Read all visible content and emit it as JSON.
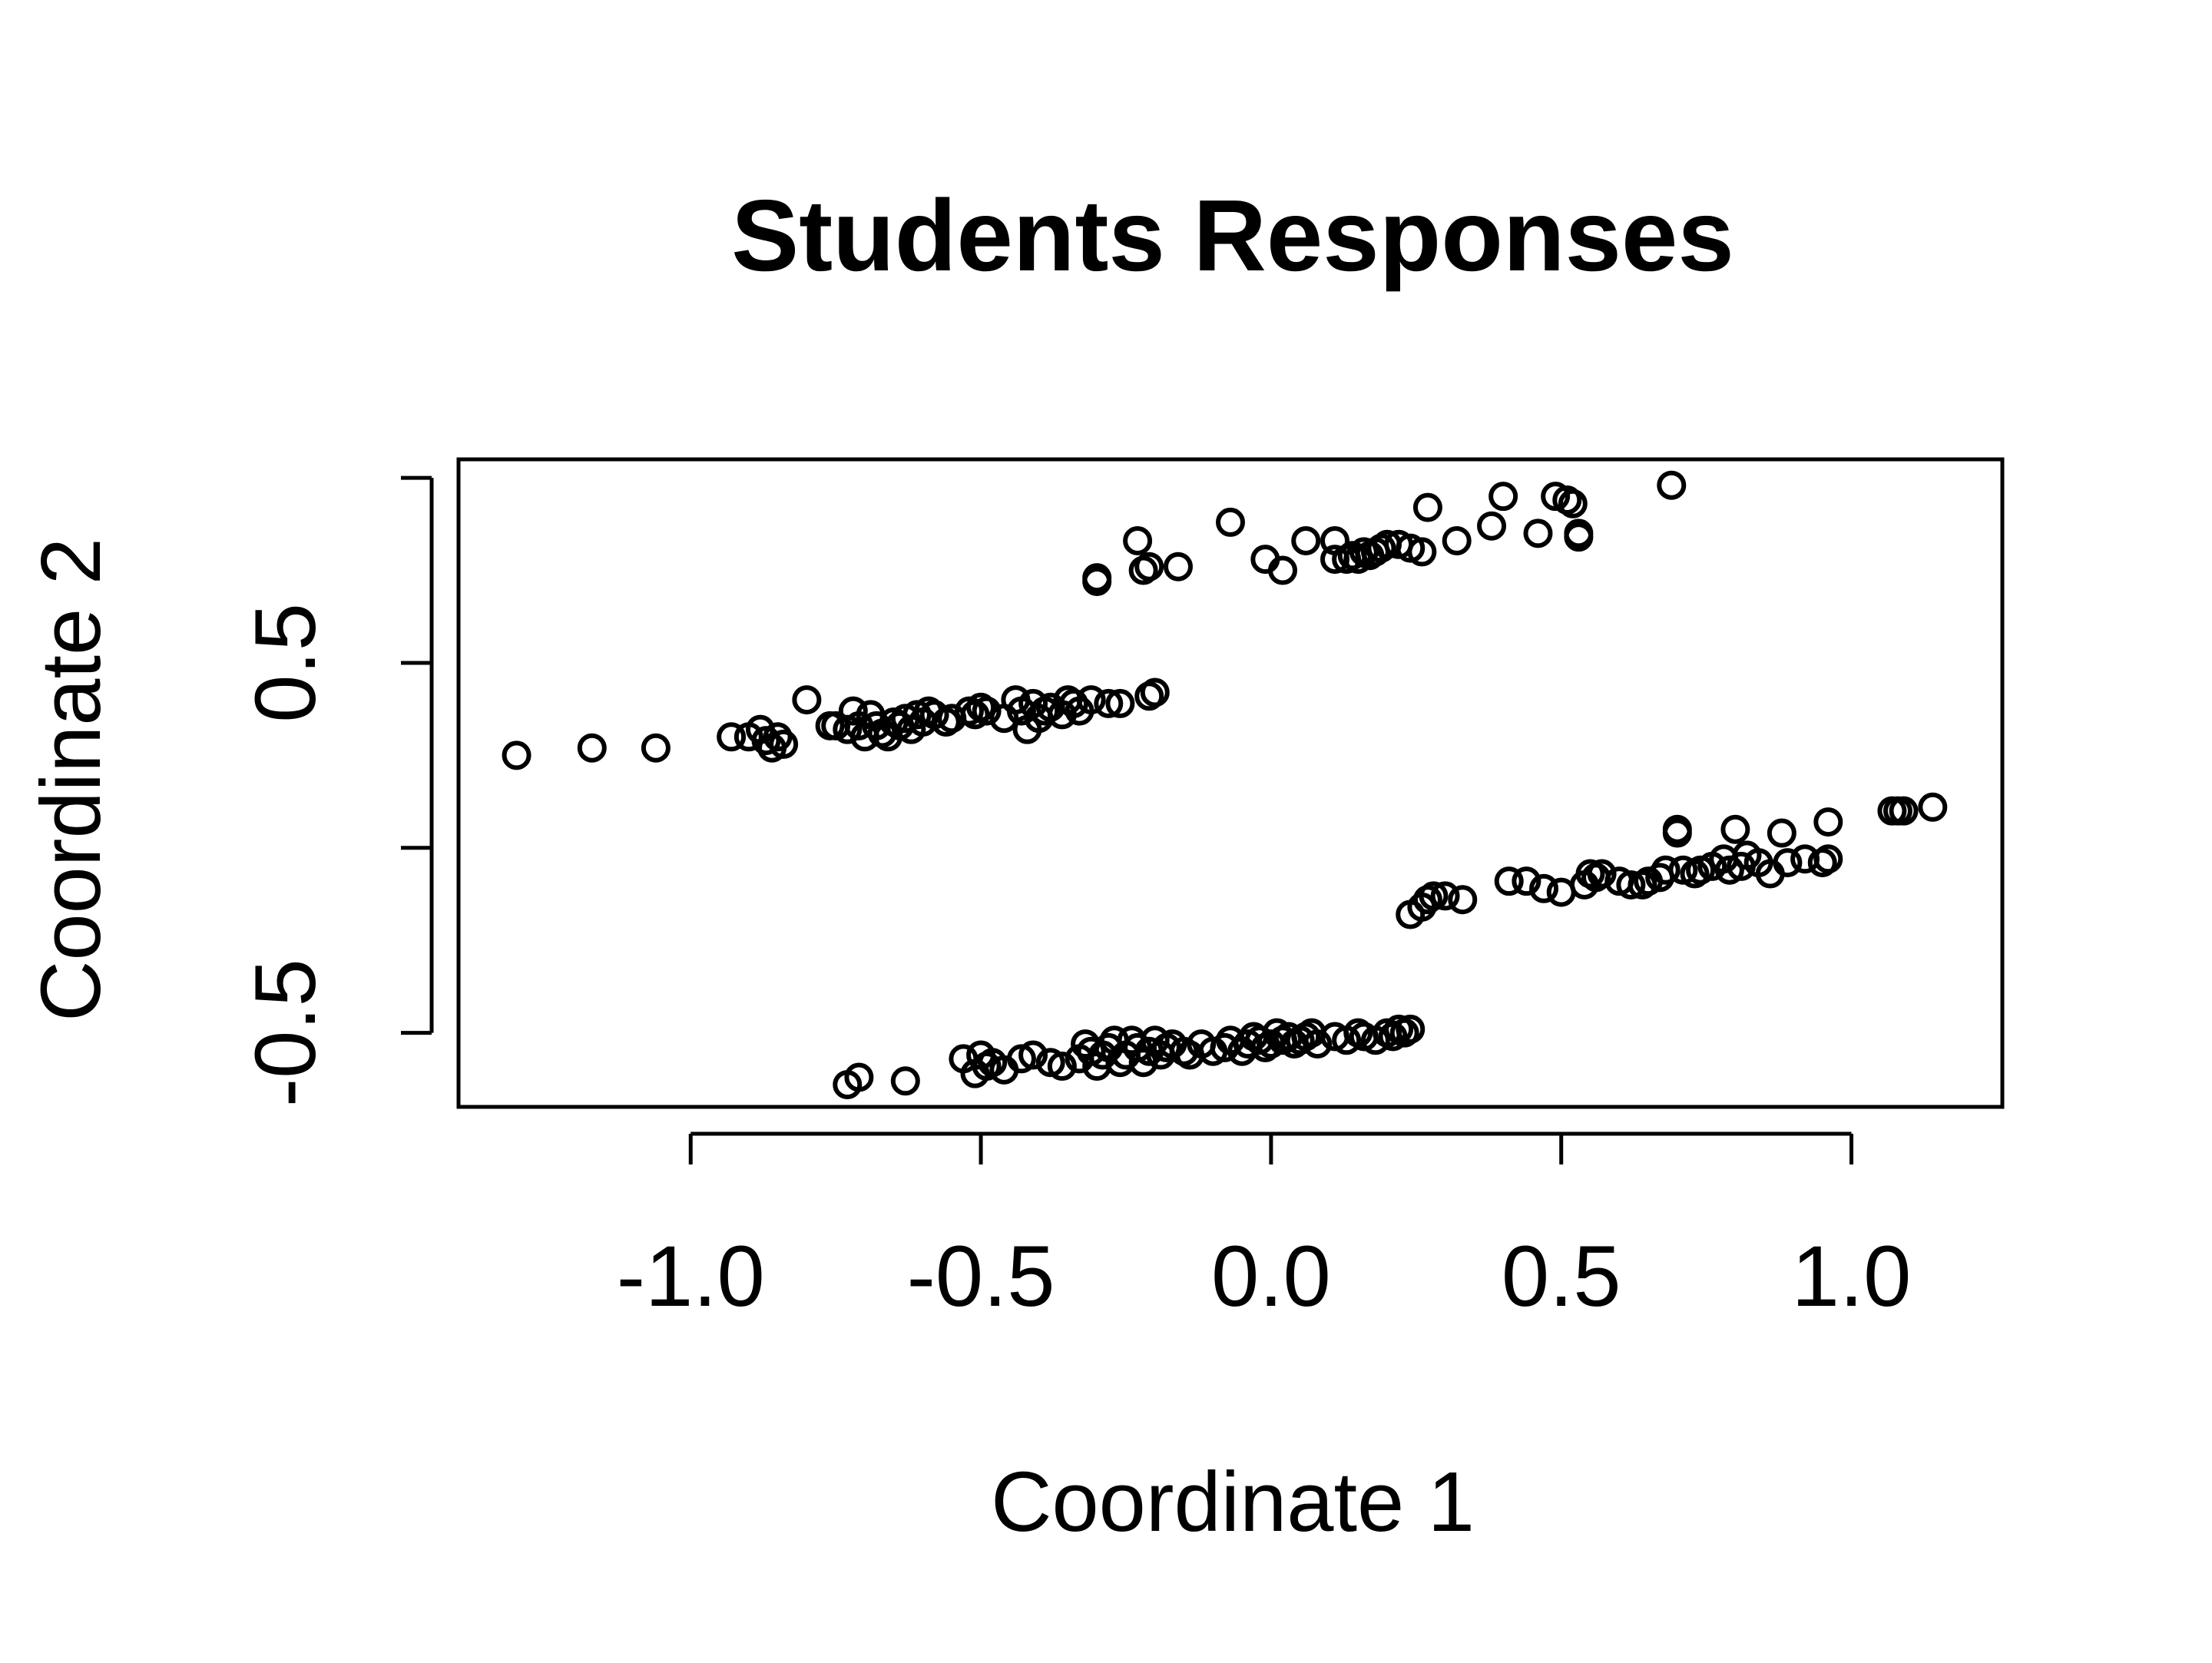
{
  "chart_data": {
    "type": "scatter",
    "title": "Students Responses",
    "xlabel": "Coordinate 1",
    "ylabel": "Coordinate 2",
    "xlim": [
      -1.4,
      1.26
    ],
    "ylim": [
      -0.7,
      1.05
    ],
    "xticks": [
      -1.0,
      -0.5,
      0.0,
      0.5,
      1.0
    ],
    "xtick_labels": [
      "-1.0",
      "-0.5",
      "0.0",
      "0.5",
      "1.0"
    ],
    "yticks": [
      -0.5,
      0.0,
      0.5,
      1.0
    ],
    "ytick_labels": [
      "-0.5",
      "",
      "0.5",
      ""
    ],
    "grid": false,
    "marker": "open-circle",
    "series": [
      {
        "x": [
          -1.3,
          -1.17,
          -1.06,
          -0.93,
          -0.9,
          -0.88,
          -0.87,
          -0.86,
          -0.85,
          -0.84,
          -0.8,
          -0.76,
          -0.75,
          -0.73,
          -0.72,
          -0.71,
          -0.7,
          -0.69,
          -0.68,
          -0.67,
          -0.66,
          -0.65,
          -0.64,
          -0.63,
          -0.62,
          -0.61,
          -0.6,
          -0.59,
          -0.58,
          -0.56,
          -0.55,
          -0.52,
          -0.51,
          -0.5,
          -0.49,
          -0.46,
          -0.44,
          -0.43,
          -0.42,
          -0.41,
          -0.4,
          -0.39,
          -0.38,
          -0.36,
          -0.35,
          -0.34,
          -0.33,
          -0.31,
          -0.28,
          -0.26,
          -0.21,
          -0.2
        ],
        "y": [
          0.25,
          0.27,
          0.27,
          0.3,
          0.3,
          0.32,
          0.29,
          0.27,
          0.3,
          0.28,
          0.4,
          0.33,
          0.33,
          0.32,
          0.37,
          0.33,
          0.3,
          0.36,
          0.33,
          0.31,
          0.3,
          0.34,
          0.33,
          0.35,
          0.32,
          0.36,
          0.34,
          0.37,
          0.36,
          0.34,
          0.35,
          0.37,
          0.36,
          0.38,
          0.37,
          0.35,
          0.4,
          0.37,
          0.32,
          0.39,
          0.35,
          0.37,
          0.38,
          0.36,
          0.4,
          0.39,
          0.37,
          0.4,
          0.39,
          0.39,
          0.41,
          0.42
        ]
      },
      {
        "x": [
          -0.3,
          -0.3,
          -0.23,
          -0.22,
          -0.21,
          -0.16,
          -0.07,
          -0.01,
          0.02,
          0.06,
          0.11,
          0.11,
          0.13,
          0.14,
          0.15,
          0.16,
          0.17,
          0.18,
          0.19,
          0.2,
          0.22,
          0.24,
          0.26,
          0.27,
          0.32,
          0.38,
          0.4,
          0.46,
          0.49,
          0.51,
          0.52,
          0.53,
          0.53,
          0.69
        ],
        "y": [
          0.73,
          0.72,
          0.83,
          0.75,
          0.76,
          0.76,
          0.88,
          0.78,
          0.75,
          0.83,
          0.83,
          0.78,
          0.78,
          0.79,
          0.78,
          0.8,
          0.79,
          0.8,
          0.81,
          0.82,
          0.82,
          0.81,
          0.8,
          0.92,
          0.83,
          0.87,
          0.95,
          0.85,
          0.95,
          0.94,
          0.93,
          0.84,
          0.85,
          0.98
        ]
      },
      {
        "x": [
          0.24,
          0.26,
          0.27,
          0.28,
          0.3,
          0.33,
          0.41,
          0.44,
          0.47,
          0.5,
          0.54,
          0.55,
          0.56,
          0.57,
          0.6,
          0.62,
          0.64,
          0.65,
          0.67,
          0.68,
          0.7,
          0.7,
          0.71,
          0.73,
          0.74,
          0.76,
          0.78,
          0.79,
          0.8,
          0.81,
          0.82,
          0.84,
          0.86,
          0.88,
          0.89,
          0.92,
          0.95,
          0.96,
          0.96,
          1.07,
          1.08,
          1.09,
          1.14
        ],
        "y": [
          -0.18,
          -0.16,
          -0.14,
          -0.13,
          -0.13,
          -0.14,
          -0.09,
          -0.09,
          -0.11,
          -0.12,
          -0.1,
          -0.07,
          -0.08,
          -0.07,
          -0.09,
          -0.1,
          -0.1,
          -0.09,
          -0.08,
          -0.06,
          0.05,
          0.04,
          -0.06,
          -0.07,
          -0.06,
          -0.05,
          -0.03,
          -0.06,
          0.05,
          -0.05,
          -0.02,
          -0.04,
          -0.07,
          0.04,
          -0.04,
          -0.03,
          -0.04,
          0.07,
          -0.03,
          0.1,
          0.1,
          0.1,
          0.11
        ]
      },
      {
        "x": [
          -0.73,
          -0.71,
          -0.63,
          -0.53,
          -0.51,
          -0.5,
          -0.49,
          -0.48,
          -0.46,
          -0.43,
          -0.41,
          -0.38,
          -0.36,
          -0.33,
          -0.32,
          -0.31,
          -0.3,
          -0.29,
          -0.28,
          -0.27,
          -0.26,
          -0.25,
          -0.24,
          -0.23,
          -0.22,
          -0.21,
          -0.2,
          -0.19,
          -0.18,
          -0.17,
          -0.15,
          -0.14,
          -0.12,
          -0.1,
          -0.08,
          -0.07,
          -0.05,
          -0.04,
          -0.03,
          -0.02,
          -0.01,
          0.0,
          0.01,
          0.02,
          0.03,
          0.04,
          0.05,
          0.06,
          0.07,
          0.08,
          0.11,
          0.13,
          0.15,
          0.16,
          0.18,
          0.2,
          0.21,
          0.22,
          0.23,
          0.24
        ],
        "y": [
          -0.64,
          -0.62,
          -0.63,
          -0.57,
          -0.61,
          -0.56,
          -0.59,
          -0.58,
          -0.6,
          -0.57,
          -0.56,
          -0.58,
          -0.59,
          -0.57,
          -0.53,
          -0.55,
          -0.59,
          -0.56,
          -0.54,
          -0.52,
          -0.58,
          -0.56,
          -0.52,
          -0.54,
          -0.58,
          -0.55,
          -0.52,
          -0.56,
          -0.54,
          -0.53,
          -0.55,
          -0.56,
          -0.53,
          -0.55,
          -0.54,
          -0.52,
          -0.55,
          -0.53,
          -0.51,
          -0.52,
          -0.54,
          -0.53,
          -0.5,
          -0.52,
          -0.51,
          -0.53,
          -0.52,
          -0.51,
          -0.5,
          -0.53,
          -0.51,
          -0.52,
          -0.5,
          -0.51,
          -0.52,
          -0.5,
          -0.51,
          -0.49,
          -0.5,
          -0.49
        ]
      }
    ]
  }
}
